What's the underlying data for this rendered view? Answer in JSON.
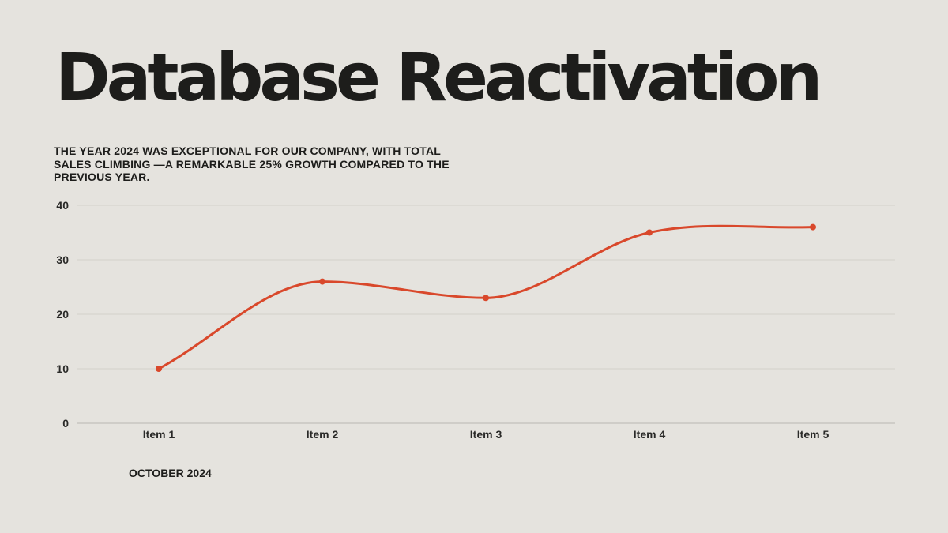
{
  "title": "Database Reactivation",
  "subtitle": "THE YEAR 2024 WAS EXCEPTIONAL FOR OUR COMPANY, WITH TOTAL SALES CLIMBING —A REMARKABLE 25% GROWTH COMPARED TO THE PREVIOUS YEAR.",
  "footer_date": "OCTOBER 2024",
  "colors": {
    "background": "#e5e3de",
    "line": "#d9482b",
    "text": "#1d1d1b",
    "gridline": "#d2d0ca"
  },
  "chart_data": {
    "type": "line",
    "categories": [
      "Item 1",
      "Item 2",
      "Item 3",
      "Item 4",
      "Item 5"
    ],
    "series": [
      {
        "values": [
          10,
          26,
          23,
          35,
          36
        ]
      }
    ],
    "ylim": [
      0,
      40
    ],
    "yticks": [
      "0",
      "10",
      "20",
      "30",
      "40"
    ],
    "smooth": true,
    "grid": true,
    "legend": "none"
  }
}
